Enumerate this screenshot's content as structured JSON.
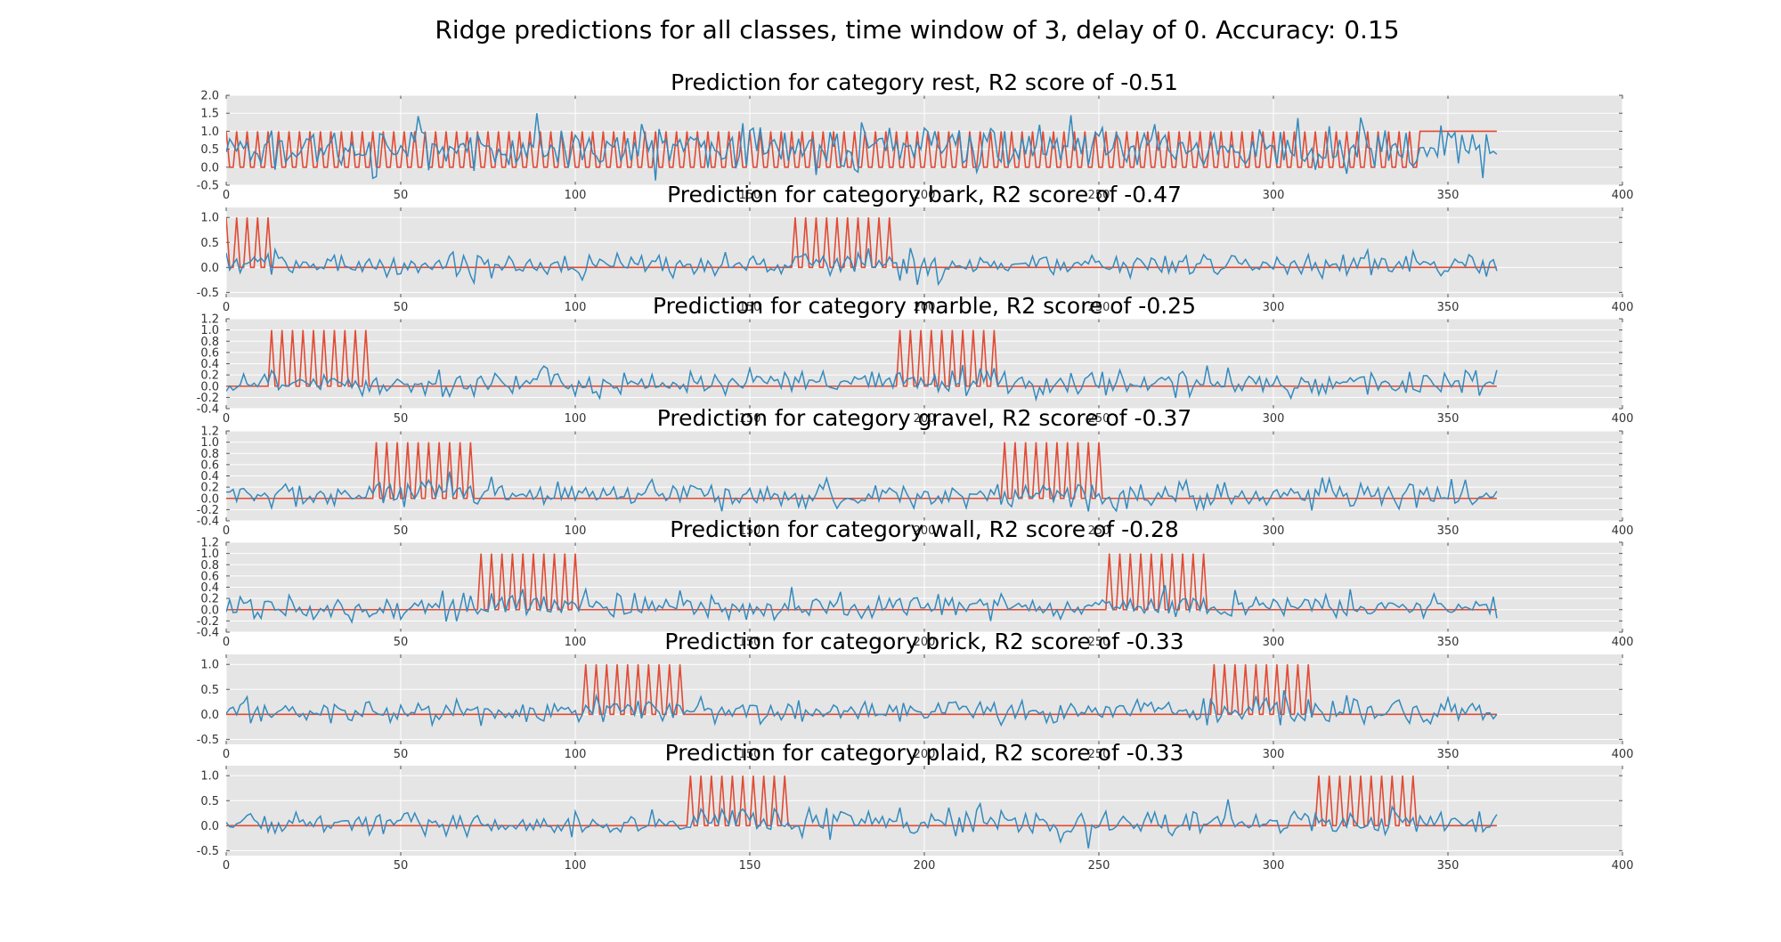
{
  "title": "Ridge predictions for all classes, time window of 3, delay of 0. Accuracy: 0.15",
  "colors": {
    "target": "#e24a33",
    "prediction": "#348abd",
    "axes_bg": "#e5e5e5",
    "grid": "#ffffff"
  },
  "chart_data": [
    {
      "type": "line",
      "title": "Prediction for category rest, R2 score of -0.51",
      "xlim": [
        0,
        400
      ],
      "ylim": [
        -0.5,
        2.0
      ],
      "xticks": [
        "0",
        "50",
        "100",
        "150",
        "200",
        "250",
        "300",
        "350",
        "400"
      ],
      "yticks": [
        "-0.5",
        "0.0",
        "0.5",
        "1.0",
        "1.5",
        "2.0"
      ],
      "x_range": [
        0,
        364
      ],
      "grid": true,
      "target_events": [
        0,
        3,
        6,
        9,
        12,
        15,
        18,
        21,
        24,
        27,
        30,
        33,
        36,
        39,
        42,
        45,
        48,
        51,
        54,
        57,
        60,
        63,
        66,
        69,
        72,
        75,
        78,
        81,
        84,
        87,
        90,
        93,
        96,
        99,
        102,
        105,
        108,
        111,
        114,
        117,
        120,
        123,
        126,
        129,
        132,
        135,
        138,
        141,
        144,
        147,
        150,
        153,
        156,
        159,
        162,
        165,
        168,
        171,
        174,
        177,
        180,
        183,
        186,
        189,
        192,
        195,
        198,
        201,
        204,
        207,
        210,
        213,
        216,
        219,
        222,
        225,
        228,
        231,
        234,
        237,
        240,
        243,
        246,
        249,
        252,
        255,
        258,
        261,
        264,
        267,
        270,
        273,
        276,
        279,
        282,
        285,
        288,
        291,
        294,
        297,
        300,
        303,
        306,
        309,
        312,
        315,
        318,
        321,
        324,
        327,
        330,
        333,
        336,
        339
      ],
      "target_tail": {
        "from": 342,
        "to": 364,
        "value": 1.0
      },
      "prediction_summary": {
        "mean": 0.55,
        "spread": 0.3,
        "max_approx": 1.5,
        "min_approx": -0.3
      }
    },
    {
      "type": "line",
      "title": "Prediction for category bark, R2 score of -0.47",
      "xlim": [
        0,
        400
      ],
      "ylim": [
        -0.6,
        1.2
      ],
      "xticks": [
        "0",
        "50",
        "100",
        "150",
        "200",
        "250",
        "300",
        "350",
        "400"
      ],
      "yticks": [
        "-0.5",
        "0.0",
        "0.5",
        "1.0"
      ],
      "x_range": [
        0,
        364
      ],
      "grid": true,
      "target_blocks": [
        [
          0,
          12
        ],
        [
          163,
          192
        ]
      ],
      "prediction_summary": {
        "mean": 0.05,
        "spread": 0.12
      }
    },
    {
      "type": "line",
      "title": "Prediction for category marble, R2 score of -0.25",
      "xlim": [
        0,
        400
      ],
      "ylim": [
        -0.4,
        1.2
      ],
      "xticks": [
        "0",
        "50",
        "100",
        "150",
        "200",
        "250",
        "300",
        "350",
        "400"
      ],
      "yticks": [
        "-0.4",
        "-0.2",
        "0.0",
        "0.2",
        "0.4",
        "0.6",
        "0.8",
        "1.0",
        "1.2"
      ],
      "x_range": [
        0,
        364
      ],
      "grid": true,
      "target_blocks": [
        [
          13,
          42
        ],
        [
          193,
          222
        ]
      ],
      "prediction_summary": {
        "mean": 0.05,
        "spread": 0.12
      }
    },
    {
      "type": "line",
      "title": "Prediction for category gravel, R2 score of -0.37",
      "xlim": [
        0,
        400
      ],
      "ylim": [
        -0.4,
        1.2
      ],
      "xticks": [
        "0",
        "50",
        "100",
        "150",
        "200",
        "250",
        "300",
        "350",
        "400"
      ],
      "yticks": [
        "-0.4",
        "-0.2",
        "0.0",
        "0.2",
        "0.4",
        "0.6",
        "0.8",
        "1.0",
        "1.2"
      ],
      "x_range": [
        0,
        364
      ],
      "grid": true,
      "target_blocks": [
        [
          43,
          72
        ],
        [
          223,
          252
        ]
      ],
      "prediction_summary": {
        "mean": 0.05,
        "spread": 0.12
      }
    },
    {
      "type": "line",
      "title": "Prediction for category wall, R2 score of -0.28",
      "xlim": [
        0,
        400
      ],
      "ylim": [
        -0.4,
        1.2
      ],
      "xticks": [
        "0",
        "50",
        "100",
        "150",
        "200",
        "250",
        "300",
        "350",
        "400"
      ],
      "yticks": [
        "-0.4",
        "-0.2",
        "0.0",
        "0.2",
        "0.4",
        "0.6",
        "0.8",
        "1.0",
        "1.2"
      ],
      "x_range": [
        0,
        364
      ],
      "grid": true,
      "target_blocks": [
        [
          73,
          102
        ],
        [
          253,
          282
        ]
      ],
      "prediction_summary": {
        "mean": 0.05,
        "spread": 0.12
      }
    },
    {
      "type": "line",
      "title": "Prediction for category brick, R2 score of -0.33",
      "xlim": [
        0,
        400
      ],
      "ylim": [
        -0.6,
        1.2
      ],
      "xticks": [
        "0",
        "50",
        "100",
        "150",
        "200",
        "250",
        "300",
        "350",
        "400"
      ],
      "yticks": [
        "-0.5",
        "0.0",
        "0.5",
        "1.0"
      ],
      "x_range": [
        0,
        364
      ],
      "grid": true,
      "target_blocks": [
        [
          103,
          132
        ],
        [
          283,
          312
        ]
      ],
      "prediction_summary": {
        "mean": 0.05,
        "spread": 0.12
      }
    },
    {
      "type": "line",
      "title": "Prediction for category plaid, R2 score of -0.33",
      "xlim": [
        0,
        400
      ],
      "ylim": [
        -0.6,
        1.2
      ],
      "xticks": [
        "0",
        "50",
        "100",
        "150",
        "200",
        "250",
        "300",
        "350",
        "400"
      ],
      "yticks": [
        "-0.5",
        "0.0",
        "0.5",
        "1.0"
      ],
      "x_range": [
        0,
        364
      ],
      "grid": true,
      "target_blocks": [
        [
          133,
          162
        ],
        [
          313,
          342
        ]
      ],
      "prediction_summary": {
        "mean": 0.05,
        "spread": 0.12
      }
    }
  ]
}
